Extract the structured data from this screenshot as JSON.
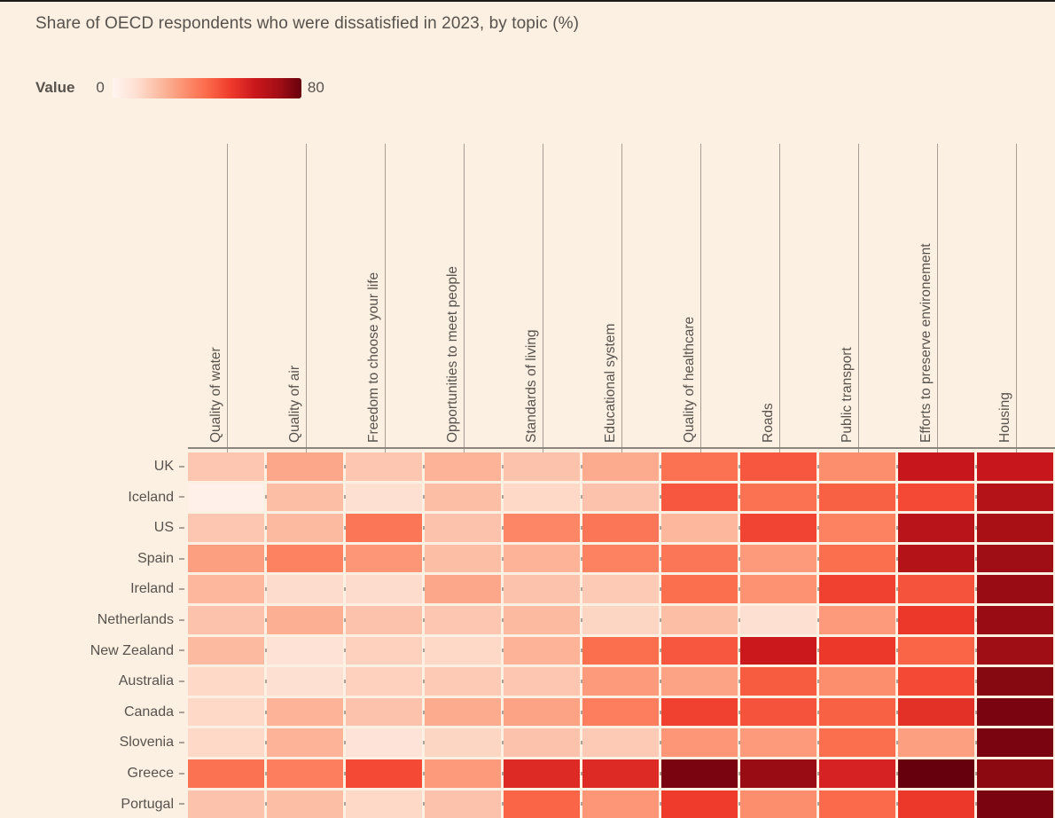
{
  "title": "Share of OECD respondents who were dissatisfied in 2023, by topic (%)",
  "legend": {
    "label": "Value",
    "min": "0",
    "max": "80"
  },
  "colors": {
    "background": "#fcf0e3",
    "top_border": "#1d1a18",
    "axis_line": "#8d867e",
    "tick": "#aaa198",
    "text": "#57524c",
    "scale_anchors": [
      "#fff5f0",
      "#fee0d2",
      "#fcbba1",
      "#fc9272",
      "#fb6a4a",
      "#ef3b2c",
      "#cb181d",
      "#a50f15",
      "#67000d"
    ]
  },
  "chart_data": {
    "type": "heatmap",
    "title": "Share of OECD respondents who were dissatisfied in 2023, by topic (%)",
    "legend_label": "Value",
    "scale": {
      "min": 0,
      "max": 80
    },
    "columns": [
      "Quality of water",
      "Quality of air",
      "Freedom to choose  your life",
      "Opportunities to meet people",
      "Standards of living",
      "Educational system",
      "Quality of healthcare",
      "Roads",
      "Public transport",
      "Efforts to preserve environement",
      "Housing"
    ],
    "rows": [
      "UK",
      "Iceland",
      "US",
      "Spain",
      "Ireland",
      "Netherlands",
      "New Zealand",
      "Australia",
      "Canada",
      "Slovenia",
      "Greece",
      "Portugal"
    ],
    "values": [
      [
        17,
        25,
        17,
        22,
        18,
        24,
        38,
        44,
        31,
        61,
        61
      ],
      [
        2,
        19,
        10,
        19,
        12,
        18,
        44,
        38,
        42,
        47,
        66
      ],
      [
        17,
        20,
        37,
        18,
        33,
        37,
        21,
        48,
        34,
        65,
        69
      ],
      [
        27,
        34,
        29,
        19,
        22,
        34,
        37,
        28,
        39,
        66,
        71
      ],
      [
        21,
        11,
        11,
        25,
        18,
        16,
        39,
        30,
        49,
        45,
        72
      ],
      [
        18,
        23,
        18,
        17,
        20,
        13,
        19,
        10,
        28,
        51,
        72
      ],
      [
        20,
        9,
        14,
        12,
        22,
        39,
        44,
        60,
        51,
        41,
        71
      ],
      [
        12,
        10,
        14,
        16,
        17,
        28,
        26,
        43,
        31,
        47,
        75
      ],
      [
        12,
        22,
        18,
        24,
        26,
        35,
        49,
        45,
        42,
        53,
        77
      ],
      [
        12,
        22,
        8,
        13,
        18,
        16,
        29,
        28,
        39,
        27,
        77
      ],
      [
        38,
        35,
        47,
        28,
        55,
        55,
        77,
        72,
        57,
        80,
        74
      ],
      [
        18,
        19,
        12,
        18,
        41,
        29,
        50,
        31,
        40,
        51,
        77
      ]
    ]
  }
}
